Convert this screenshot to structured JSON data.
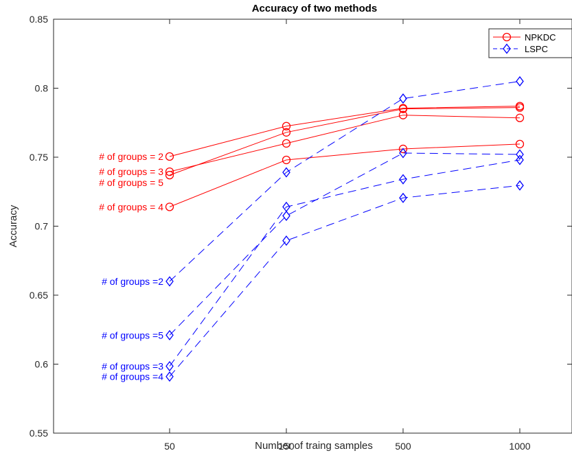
{
  "colors": {
    "npkdc": "#ff0000",
    "lspc": "#0000ff",
    "axis": "#262626"
  },
  "chart_data": {
    "type": "line",
    "title": "Accuracy of two methods",
    "xlabel": "Number of traing samples",
    "ylabel": "Accuracy",
    "categories": [
      "50",
      "150",
      "500",
      "1000"
    ],
    "x_scale": "categorical",
    "ylim": [
      0.55,
      0.85
    ],
    "yticks": [
      "0.55",
      "0.6",
      "0.65",
      "0.7",
      "0.75",
      "0.8",
      "0.85"
    ],
    "grid": false,
    "legend": {
      "position": "top-right",
      "entries": [
        {
          "label": "NPKDC",
          "marker": "circle",
          "line": "solid",
          "color": "#ff0000"
        },
        {
          "label": "LSPC",
          "marker": "diamond",
          "line": "dashed",
          "color": "#0000ff"
        }
      ]
    },
    "series": [
      {
        "method": "NPKDC",
        "values": [
          0.7505,
          0.7725,
          0.7855,
          0.787
        ],
        "marker": "circle",
        "line": "solid",
        "color": "#ff0000"
      },
      {
        "method": "NPKDC",
        "values": [
          0.7395,
          0.76,
          0.7805,
          0.7785
        ],
        "marker": "circle",
        "line": "solid",
        "color": "#ff0000"
      },
      {
        "method": "NPKDC",
        "values": [
          0.737,
          0.768,
          0.785,
          0.786
        ],
        "marker": "circle",
        "line": "solid",
        "color": "#ff0000"
      },
      {
        "method": "NPKDC",
        "values": [
          0.714,
          0.748,
          0.756,
          0.7595
        ],
        "marker": "circle",
        "line": "solid",
        "color": "#ff0000"
      },
      {
        "method": "LSPC",
        "values": [
          0.66,
          0.739,
          0.7925,
          0.805
        ],
        "marker": "diamond",
        "line": "dashed",
        "color": "#0000ff"
      },
      {
        "method": "LSPC",
        "values": [
          0.621,
          0.7075,
          0.753,
          0.752
        ],
        "marker": "diamond",
        "line": "dashed",
        "color": "#0000ff"
      },
      {
        "method": "LSPC",
        "values": [
          0.5985,
          0.714,
          0.734,
          0.748
        ],
        "marker": "diamond",
        "line": "dashed",
        "color": "#0000ff"
      },
      {
        "method": "LSPC",
        "values": [
          0.591,
          0.6895,
          0.7205,
          0.7295
        ],
        "marker": "diamond",
        "line": "dashed",
        "color": "#0000ff"
      }
    ],
    "annotations": [
      {
        "text": "# of groups = 2",
        "y": 0.7505,
        "color": "#ff0000"
      },
      {
        "text": "# of groups = 3",
        "y": 0.7395,
        "color": "#ff0000"
      },
      {
        "text": "# of groups = 5",
        "y": 0.7315,
        "color": "#ff0000"
      },
      {
        "text": "# of groups = 4",
        "y": 0.714,
        "color": "#ff0000"
      },
      {
        "text": "# of groups =2",
        "y": 0.66,
        "color": "#0000ff"
      },
      {
        "text": "# of groups =5",
        "y": 0.621,
        "color": "#0000ff"
      },
      {
        "text": "# of groups =3",
        "y": 0.5985,
        "color": "#0000ff"
      },
      {
        "text": "# of groups =4",
        "y": 0.591,
        "color": "#0000ff"
      }
    ]
  }
}
